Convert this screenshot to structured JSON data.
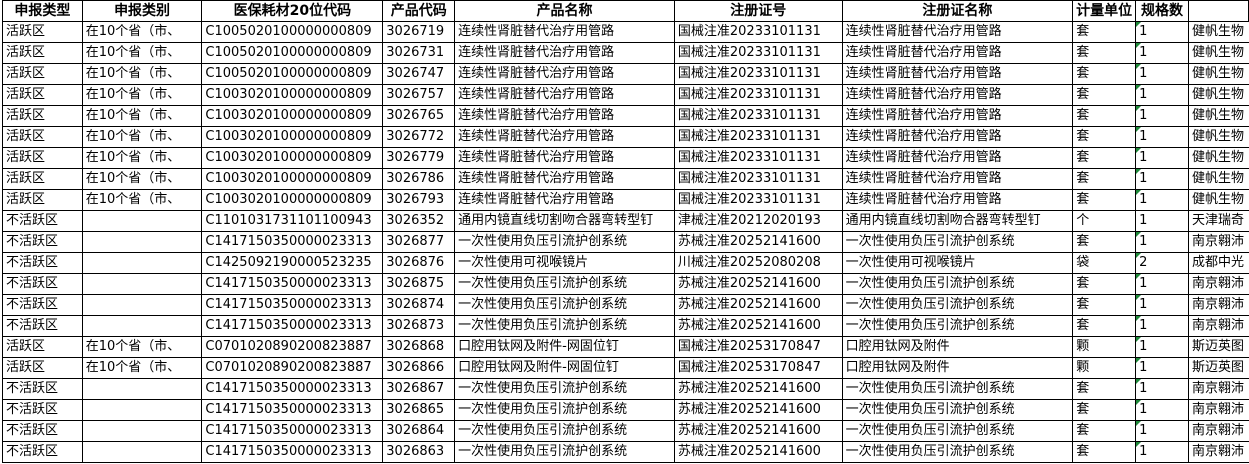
{
  "sheet": {
    "columns": [
      "申报类型",
      "申报类别",
      "医保耗材20位代码",
      "产品代码",
      "产品名称",
      "注册证号",
      "注册证名称",
      "计量单位",
      "规格数",
      ""
    ],
    "rows": [
      {
        "cells": [
          "活跃区",
          "在10个省（市、",
          "C1005020100000000809",
          "3026719",
          "连续性肾脏替代治疗用管路",
          "国械注准20233101131",
          "连续性肾脏替代治疗用管路",
          "套",
          "1",
          "健帆生物"
        ],
        "text_number_flag": true
      },
      {
        "cells": [
          "活跃区",
          "在10个省（市、",
          "C1005020100000000809",
          "3026731",
          "连续性肾脏替代治疗用管路",
          "国械注准20233101131",
          "连续性肾脏替代治疗用管路",
          "套",
          "1",
          "健帆生物"
        ],
        "text_number_flag": true
      },
      {
        "cells": [
          "活跃区",
          "在10个省（市、",
          "C1005020100000000809",
          "3026747",
          "连续性肾脏替代治疗用管路",
          "国械注准20233101131",
          "连续性肾脏替代治疗用管路",
          "套",
          "1",
          "健帆生物"
        ],
        "text_number_flag": true
      },
      {
        "cells": [
          "活跃区",
          "在10个省（市、",
          "C1003020100000000809",
          "3026757",
          "连续性肾脏替代治疗用管路",
          "国械注准20233101131",
          "连续性肾脏替代治疗用管路",
          "套",
          "1",
          "健帆生物"
        ],
        "text_number_flag": true
      },
      {
        "cells": [
          "活跃区",
          "在10个省（市、",
          "C1003020100000000809",
          "3026765",
          "连续性肾脏替代治疗用管路",
          "国械注准20233101131",
          "连续性肾脏替代治疗用管路",
          "套",
          "1",
          "健帆生物"
        ],
        "text_number_flag": true
      },
      {
        "cells": [
          "活跃区",
          "在10个省（市、",
          "C1003020100000000809",
          "3026772",
          "连续性肾脏替代治疗用管路",
          "国械注准20233101131",
          "连续性肾脏替代治疗用管路",
          "套",
          "1",
          "健帆生物"
        ],
        "text_number_flag": true
      },
      {
        "cells": [
          "活跃区",
          "在10个省（市、",
          "C1003020100000000809",
          "3026779",
          "连续性肾脏替代治疗用管路",
          "国械注准20233101131",
          "连续性肾脏替代治疗用管路",
          "套",
          "1",
          "健帆生物"
        ],
        "text_number_flag": true
      },
      {
        "cells": [
          "活跃区",
          "在10个省（市、",
          "C1003020100000000809",
          "3026786",
          "连续性肾脏替代治疗用管路",
          "国械注准20233101131",
          "连续性肾脏替代治疗用管路",
          "套",
          "1",
          "健帆生物"
        ],
        "text_number_flag": true
      },
      {
        "cells": [
          "活跃区",
          "在10个省（市、",
          "C1003020100000000809",
          "3026793",
          "连续性肾脏替代治疗用管路",
          "国械注准20233101131",
          "连续性肾脏替代治疗用管路",
          "套",
          "1",
          "健帆生物"
        ],
        "text_number_flag": true
      },
      {
        "cells": [
          "不活跃区",
          "",
          "C1101031731101100943",
          "3026352",
          "通用内镜直线切割吻合器弯转型钉",
          "津械注准20212020193",
          "通用内镜直线切割吻合器弯转型钉",
          "个",
          "1",
          "天津瑞奇"
        ],
        "text_number_flag": false
      },
      {
        "cells": [
          "不活跃区",
          "",
          "C1417150350000023313",
          "3026877",
          "一次性使用负压引流护创系统",
          "苏械注准20252141600",
          "一次性使用负压引流护创系统",
          "套",
          "1",
          "南京翱沛"
        ],
        "text_number_flag": true
      },
      {
        "cells": [
          "不活跃区",
          "",
          "C1425092190000523235",
          "3026876",
          "一次性使用可视喉镜片",
          "川械注准20252080208",
          "一次性使用可视喉镜片",
          "袋",
          "2",
          "成都中光"
        ],
        "text_number_flag": true
      },
      {
        "cells": [
          "不活跃区",
          "",
          "C1417150350000023313",
          "3026875",
          "一次性使用负压引流护创系统",
          "苏械注准20252141600",
          "一次性使用负压引流护创系统",
          "套",
          "1",
          "南京翱沛"
        ],
        "text_number_flag": true
      },
      {
        "cells": [
          "不活跃区",
          "",
          "C1417150350000023313",
          "3026874",
          "一次性使用负压引流护创系统",
          "苏械注准20252141600",
          "一次性使用负压引流护创系统",
          "套",
          "1",
          "南京翱沛"
        ],
        "text_number_flag": true
      },
      {
        "cells": [
          "不活跃区",
          "",
          "C1417150350000023313",
          "3026873",
          "一次性使用负压引流护创系统",
          "苏械注准20252141600",
          "一次性使用负压引流护创系统",
          "套",
          "1",
          "南京翱沛"
        ],
        "text_number_flag": true
      },
      {
        "cells": [
          "活跃区",
          "在10个省（市、",
          "C0701020890200823887",
          "3026868",
          "口腔用钛网及附件-网固位钉",
          "国械注准20253170847",
          "口腔用钛网及附件",
          "颗",
          "1",
          "斯迈英图"
        ],
        "text_number_flag": true
      },
      {
        "cells": [
          "活跃区",
          "在10个省（市、",
          "C0701020890200823887",
          "3026866",
          "口腔用钛网及附件-网固位钉",
          "国械注准20253170847",
          "口腔用钛网及附件",
          "颗",
          "1",
          "斯迈英图"
        ],
        "text_number_flag": true
      },
      {
        "cells": [
          "不活跃区",
          "",
          "C1417150350000023313",
          "3026867",
          "一次性使用负压引流护创系统",
          "苏械注准20252141600",
          "一次性使用负压引流护创系统",
          "套",
          "1",
          "南京翱沛"
        ],
        "text_number_flag": true
      },
      {
        "cells": [
          "不活跃区",
          "",
          "C1417150350000023313",
          "3026865",
          "一次性使用负压引流护创系统",
          "苏械注准20252141600",
          "一次性使用负压引流护创系统",
          "套",
          "1",
          "南京翱沛"
        ],
        "text_number_flag": true
      },
      {
        "cells": [
          "不活跃区",
          "",
          "C1417150350000023313",
          "3026864",
          "一次性使用负压引流护创系统",
          "苏械注准20252141600",
          "一次性使用负压引流护创系统",
          "套",
          "1",
          "南京翱沛"
        ],
        "text_number_flag": true
      },
      {
        "cells": [
          "不活跃区",
          "",
          "C1417150350000023313",
          "3026863",
          "一次性使用负压引流护创系统",
          "苏械注准20252141600",
          "一次性使用负压引流护创系统",
          "套",
          "1",
          "南京翱沛"
        ],
        "text_number_flag": true
      }
    ],
    "colors": {
      "grid": "#000000",
      "text_number_flag": "#1e8a3a"
    }
  }
}
